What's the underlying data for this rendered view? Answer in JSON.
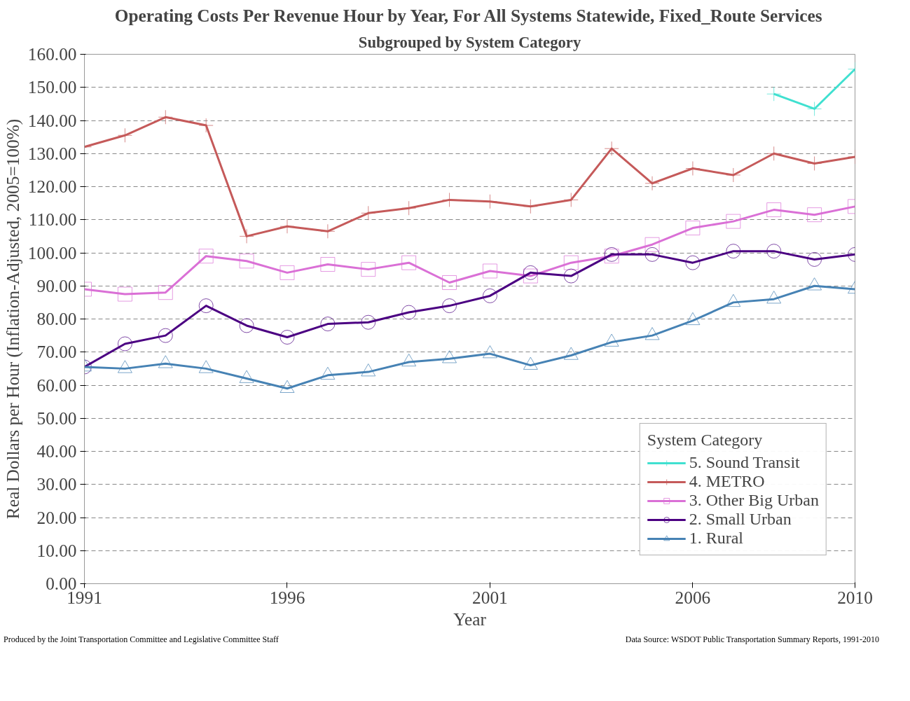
{
  "chart_data": {
    "type": "line",
    "title": "Operating Costs Per Revenue Hour by Year, For All Systems Statewide, Fixed_Route Services",
    "subtitle": "Subgrouped by System Category",
    "xlabel": "Year",
    "ylabel": "Real Dollars per Hour (Inflation-Adjusted, 2005=100%)",
    "legend_title": "System Category",
    "x": [
      1991,
      1992,
      1993,
      1994,
      1995,
      1996,
      1997,
      1998,
      1999,
      2000,
      2001,
      2002,
      2003,
      2004,
      2005,
      2006,
      2007,
      2008,
      2009,
      2010
    ],
    "series": [
      {
        "name": "5. Sound Transit",
        "color": "#40e0d0",
        "marker": "cross",
        "values": [
          null,
          null,
          null,
          null,
          null,
          null,
          null,
          null,
          null,
          null,
          null,
          null,
          null,
          null,
          null,
          null,
          null,
          148,
          143.5,
          155.5
        ]
      },
      {
        "name": "4. METRO",
        "color": "#c55a5a",
        "marker": "cross",
        "values": [
          132,
          135.5,
          141,
          138.5,
          105,
          108,
          106.5,
          112,
          113.5,
          116,
          115.5,
          114,
          116,
          131.5,
          121,
          125.5,
          123.5,
          130,
          127,
          129
        ]
      },
      {
        "name": "3. Other Big Urban",
        "color": "#da70d6",
        "marker": "square",
        "values": [
          89,
          87.5,
          88,
          99,
          97.5,
          94,
          96.5,
          95,
          97,
          91,
          94.5,
          93,
          97,
          99,
          102.5,
          107.5,
          109.5,
          113,
          111.5,
          114
        ]
      },
      {
        "name": "2. Small Urban",
        "color": "#4b0082",
        "marker": "circle",
        "values": [
          65.5,
          72.5,
          75,
          84,
          78,
          74.5,
          78.5,
          79,
          82,
          84,
          87,
          94,
          93,
          99.5,
          99.5,
          97,
          100.5,
          100.5,
          98,
          99.5
        ]
      },
      {
        "name": "1. Rural",
        "color": "#4682b4",
        "marker": "triangle",
        "values": [
          65.5,
          65,
          66.5,
          65,
          62,
          59,
          63,
          64,
          67,
          68,
          69.5,
          66,
          69,
          73,
          75,
          79.5,
          85,
          86,
          90,
          89
        ]
      }
    ],
    "xlim": [
      1991,
      2010
    ],
    "xticks": [
      1991,
      1996,
      2001,
      2006,
      2010
    ],
    "ylim": [
      0,
      160
    ],
    "yticks": [
      {
        "value": 0,
        "label": "0.00"
      },
      {
        "value": 10,
        "label": "10.00"
      },
      {
        "value": 20,
        "label": "20.00"
      },
      {
        "value": 30,
        "label": "30.00"
      },
      {
        "value": 40,
        "label": "40.00"
      },
      {
        "value": 50,
        "label": "50.00"
      },
      {
        "value": 60,
        "label": "60.00"
      },
      {
        "value": 70,
        "label": "70.00"
      },
      {
        "value": 80,
        "label": "80.00"
      },
      {
        "value": 90,
        "label": "90.00"
      },
      {
        "value": 100,
        "label": "100.00"
      },
      {
        "value": 110,
        "label": "110.00"
      },
      {
        "value": 120,
        "label": "120.00"
      },
      {
        "value": 130,
        "label": "130.00"
      },
      {
        "value": 140,
        "label": "140.00"
      },
      {
        "value": 150,
        "label": "150.00"
      },
      {
        "value": 160,
        "label": "160.00"
      }
    ],
    "grid": "y",
    "legend": "bottom right",
    "line_style": "solid",
    "annotations": [
      "Produced by the Joint Transportation Committee and Legislative Committee Staff",
      "Data Source: WSDOT Public Transportation Summary Reports, 1991-2010"
    ]
  }
}
